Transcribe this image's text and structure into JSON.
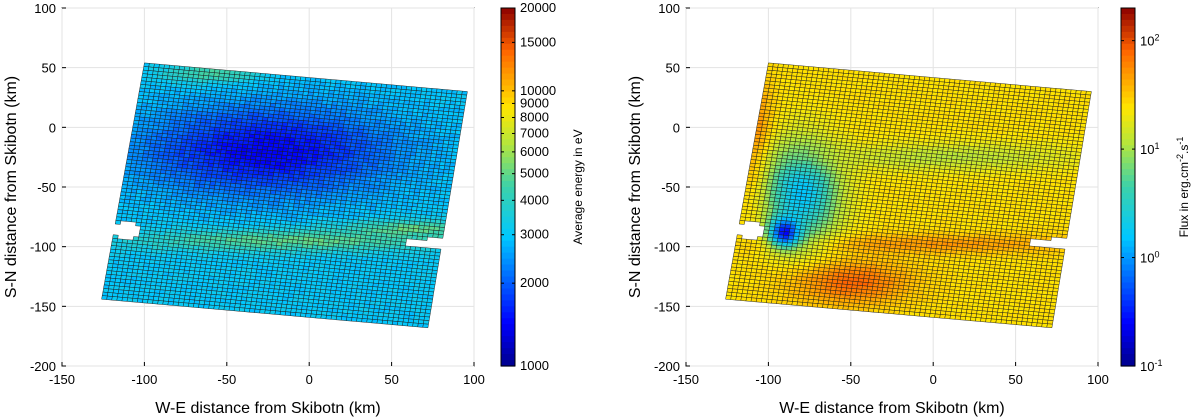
{
  "chart_data": [
    {
      "type": "heatmap",
      "title": "",
      "xlabel": "W-E distance from Skibotn (km)",
      "ylabel": "S-N distance from Skibotn (km)",
      "xlim": [
        -150,
        100
      ],
      "ylim": [
        -200,
        100
      ],
      "x_ticks": [
        "-150",
        "-100",
        "-50",
        "0",
        "50",
        "100"
      ],
      "y_ticks": [
        "100",
        "50",
        "0",
        "-50",
        "-100",
        "-150",
        "-200"
      ],
      "grid": true,
      "region_corners_km": [
        [
          -100,
          54
        ],
        [
          96,
          30
        ],
        [
          72,
          -168
        ],
        [
          -126,
          -144
        ]
      ],
      "colorbar": {
        "label": "Average energy in eV",
        "scale": "log",
        "range": [
          1000,
          20000
        ],
        "tick_labels": [
          "1000",
          "2000",
          "3000",
          "4000",
          "5000",
          "6000",
          "7000",
          "8000",
          "9000",
          "10000",
          "15000",
          "20000"
        ],
        "tick_values": [
          1000,
          2000,
          3000,
          4000,
          5000,
          6000,
          7000,
          8000,
          9000,
          10000,
          15000,
          20000
        ]
      },
      "typical_value": 3000,
      "features": [
        {
          "desc": "low-energy oval",
          "center": [
            -25,
            -20
          ],
          "radius": [
            75,
            38
          ],
          "value": 1400
        },
        {
          "desc": "higher-energy arc",
          "center": [
            -10,
            -95
          ],
          "radius": [
            95,
            9
          ],
          "value": 5000
        },
        {
          "desc": "higher-energy band east",
          "center": [
            60,
            -85
          ],
          "radius": [
            40,
            7
          ],
          "value": 5000
        },
        {
          "desc": "higher-energy north edge",
          "center": [
            -60,
            45
          ],
          "radius": [
            30,
            8
          ],
          "value": 4500
        }
      ],
      "no_data": [
        {
          "center": [
            -111,
            -87
          ],
          "radius": [
            8,
            8
          ]
        },
        {
          "center": [
            78,
            -97
          ],
          "radius": [
            20,
            4
          ]
        }
      ]
    },
    {
      "type": "heatmap",
      "title": "",
      "xlabel": "W-E distance from Skibotn (km)",
      "ylabel": "S-N distance from Skibotn (km)",
      "xlim": [
        -150,
        100
      ],
      "ylim": [
        -200,
        100
      ],
      "x_ticks": [
        "-150",
        "-100",
        "-50",
        "0",
        "50",
        "100"
      ],
      "y_ticks": [
        "100",
        "50",
        "0",
        "-50",
        "-100",
        "-150",
        "-200"
      ],
      "grid": true,
      "region_corners_km": [
        [
          -100,
          54
        ],
        [
          96,
          30
        ],
        [
          72,
          -168
        ],
        [
          -126,
          -144
        ]
      ],
      "colorbar": {
        "label_parts": [
          "Flux in erg.cm",
          "-2",
          ".s",
          "-1"
        ],
        "scale": "log",
        "range": [
          0.1,
          200
        ],
        "tick_labels": [
          {
            "base": "10",
            "exp": "-1",
            "value": 0.1
          },
          {
            "base": "10",
            "exp": "0",
            "value": 1
          },
          {
            "base": "10",
            "exp": "1",
            "value": 10
          },
          {
            "base": "10",
            "exp": "2",
            "value": 100
          }
        ]
      },
      "typical_value": 25,
      "features": [
        {
          "desc": "enhanced flux region south",
          "center": [
            -50,
            -130
          ],
          "radius": [
            35,
            18
          ],
          "value": 80
        },
        {
          "desc": "enhanced flux west edge",
          "center": [
            -108,
            -10
          ],
          "radius": [
            10,
            60
          ],
          "value": 60
        },
        {
          "desc": "enhanced flux band",
          "center": [
            0,
            -98
          ],
          "radius": [
            90,
            8
          ],
          "value": 50
        },
        {
          "desc": "low flux wedge",
          "center": [
            -80,
            -55
          ],
          "radius": [
            22,
            40
          ],
          "value": 1.5
        },
        {
          "desc": "very low flux core",
          "center": [
            -90,
            -88
          ],
          "radius": [
            9,
            12
          ],
          "value": 0.25
        },
        {
          "desc": "reduced flux band",
          "center": [
            10,
            -25
          ],
          "radius": [
            80,
            12
          ],
          "value": 12
        }
      ],
      "no_data": [
        {
          "center": [
            -111,
            -87
          ],
          "radius": [
            8,
            8
          ]
        },
        {
          "center": [
            78,
            -97
          ],
          "radius": [
            20,
            4
          ]
        }
      ]
    }
  ]
}
